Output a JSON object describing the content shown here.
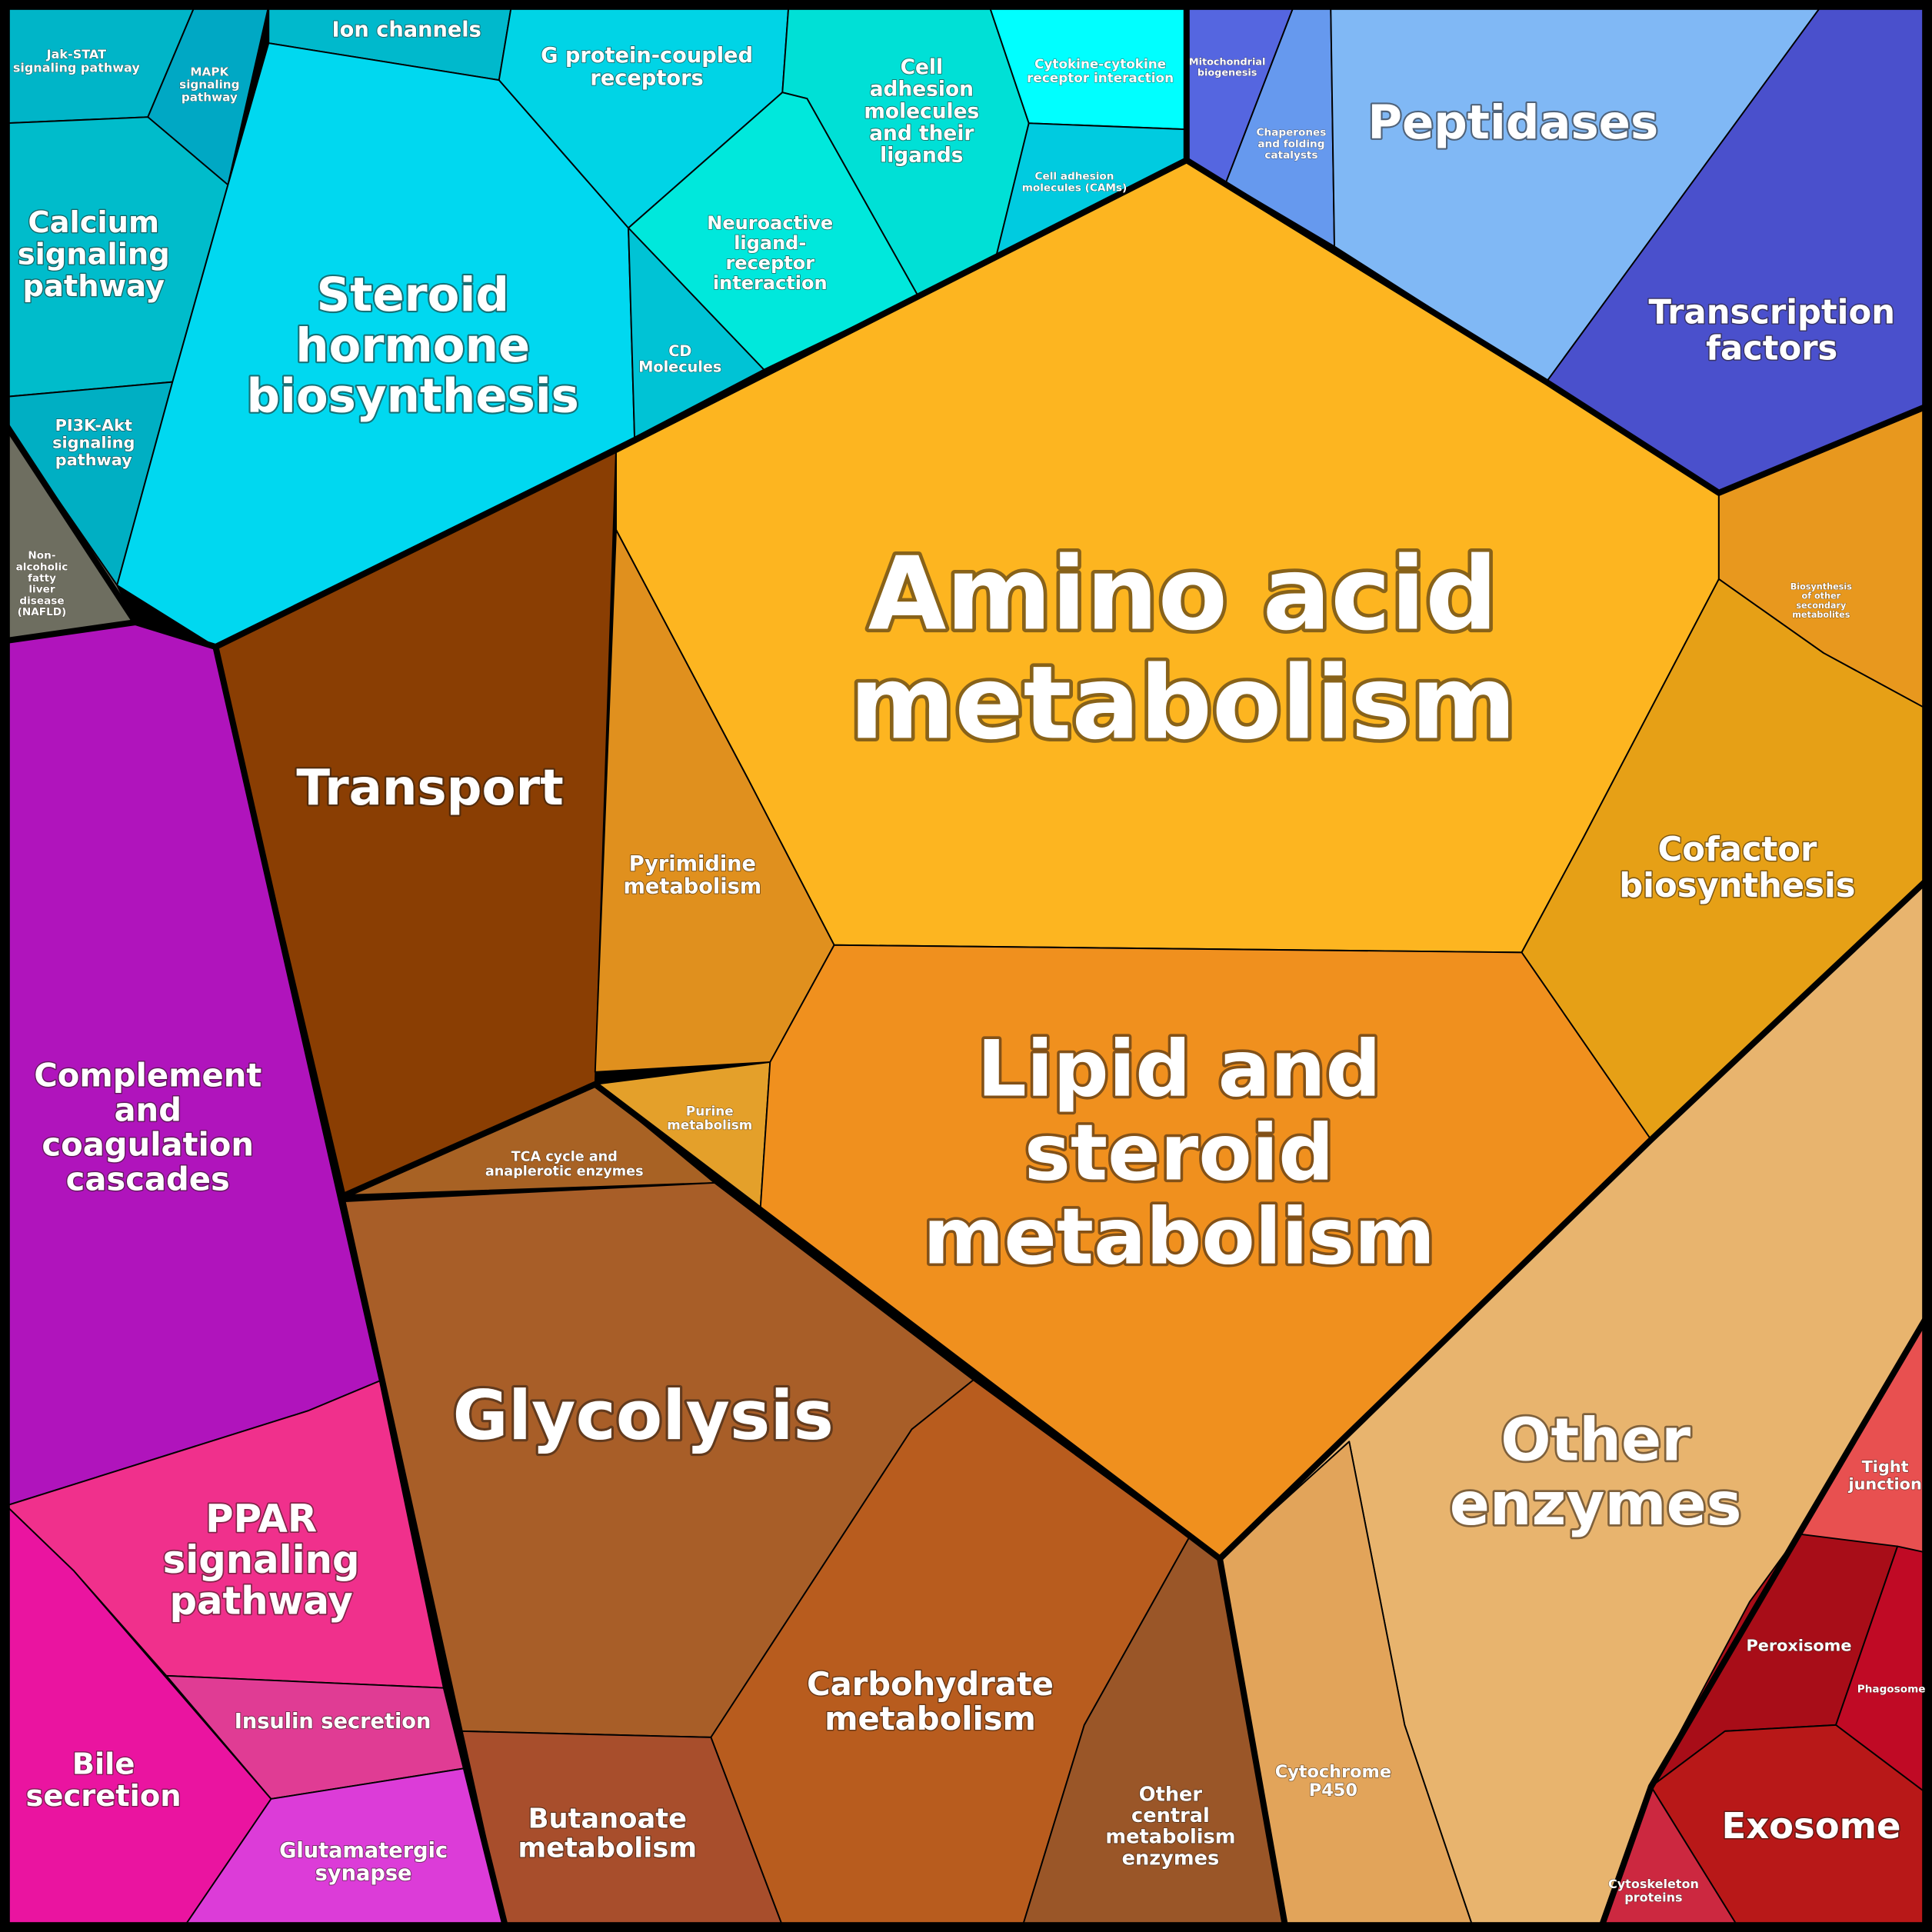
{
  "regions": [
    {
      "label": [
        "Jak-STAT",
        "signaling pathway"
      ]
    },
    {
      "label": [
        "MAPK",
        "signaling",
        "pathway"
      ]
    },
    {
      "label": [
        "Calcium",
        "signaling",
        "pathway"
      ]
    },
    {
      "label": [
        "PI3K-Akt",
        "signaling",
        "pathway"
      ]
    },
    {
      "label": [
        "Non-",
        "alcoholic",
        "fatty",
        "liver",
        "disease",
        "(NAFLD)"
      ]
    },
    {
      "label": [
        "Ion channels"
      ]
    },
    {
      "label": [
        "Steroid",
        "hormone",
        "biosynthesis"
      ]
    },
    {
      "label": [
        "G protein-coupled",
        "receptors"
      ]
    },
    {
      "label": [
        "Cell",
        "adhesion",
        "molecules",
        "and their",
        "ligands"
      ]
    },
    {
      "label": [
        "Cytokine-cytokine",
        "receptor interaction"
      ]
    },
    {
      "label": [
        "Cell adhesion",
        "molecules (CAMs)"
      ]
    },
    {
      "label": [
        "Neuroactive",
        "ligand-",
        "receptor",
        "interaction"
      ]
    },
    {
      "label": [
        "CD",
        "Molecules"
      ]
    },
    {
      "label": [
        "Mitochondrial",
        "biogenesis"
      ]
    },
    {
      "label": [
        "Chaperones",
        "and folding",
        "catalysts"
      ]
    },
    {
      "label": [
        "Peptidases"
      ]
    },
    {
      "label": [
        "Transcription",
        "factors"
      ]
    },
    {
      "label": [
        "Transport"
      ]
    },
    {
      "label": [
        "Amino acid",
        "metabolism"
      ]
    },
    {
      "label": [
        "Pyrimidine",
        "metabolism"
      ]
    },
    {
      "label": [
        "Purine",
        "metabolism"
      ]
    },
    {
      "label": [
        "Biosynthesis",
        "of other",
        "secondary",
        "metabolites"
      ]
    },
    {
      "label": [
        "Cofactor",
        "biosynthesis"
      ]
    },
    {
      "label": [
        "Lipid and",
        "steroid",
        "metabolism"
      ]
    },
    {
      "label": [
        "Other",
        "enzymes"
      ]
    },
    {
      "label": [
        "Cytochrome",
        "P450"
      ]
    },
    {
      "label": [
        "Tight",
        "junction"
      ]
    },
    {
      "label": [
        "Peroxisome"
      ]
    },
    {
      "label": [
        "Phagosome"
      ]
    },
    {
      "label": [
        "Exosome"
      ]
    },
    {
      "label": [
        "Cytoskeleton",
        "proteins"
      ]
    },
    {
      "label": [
        "TCA cycle and",
        "anaplerotic enzymes"
      ]
    },
    {
      "label": [
        "Glycolysis"
      ]
    },
    {
      "label": [
        "Carbohydrate",
        "metabolism"
      ]
    },
    {
      "label": [
        "Other",
        "central",
        "metabolism",
        "enzymes"
      ]
    },
    {
      "label": [
        "Butanoate",
        "metabolism"
      ]
    },
    {
      "label": [
        "Complement",
        "and",
        "coagulation",
        "cascades"
      ]
    },
    {
      "label": [
        "PPAR",
        "signaling",
        "pathway"
      ]
    },
    {
      "label": [
        "Insulin secretion"
      ]
    },
    {
      "label": [
        "Bile",
        "secretion"
      ]
    },
    {
      "label": [
        "Glutamatergic",
        "synapse"
      ]
    }
  ]
}
